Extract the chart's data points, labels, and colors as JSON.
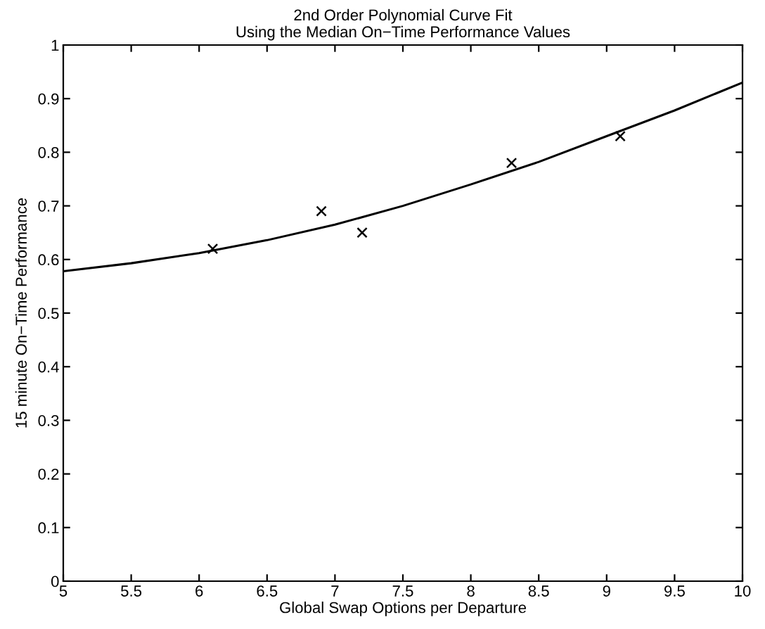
{
  "chart_data": {
    "type": "scatter",
    "title": "2nd Order Polynomial Curve Fit\nUsing the Median On−Time Performance Values",
    "xlabel": "Global Swap Options per Departure",
    "ylabel": "15 minute On−Time Performance",
    "series": [
      {
        "color": "#000000",
        "marker": "cross",
        "x": [
          6.1,
          6.9,
          7.2,
          8.3,
          9.1
        ],
        "values": [
          0.62,
          0.69,
          0.65,
          0.78,
          0.83
        ]
      },
      {
        "type": "line",
        "color": "#000000",
        "marker": "none",
        "line_style": "solid",
        "x": [
          5,
          5.5,
          6,
          6.5,
          7,
          7.5,
          8,
          8.5,
          9,
          9.5,
          10
        ],
        "values": [
          0.578,
          0.593,
          0.612,
          0.636,
          0.665,
          0.7,
          0.74,
          0.782,
          0.83,
          0.878,
          0.93
        ]
      }
    ],
    "xlim": [
      5,
      10
    ],
    "xticks": [
      5,
      5.5,
      6,
      6.5,
      7,
      7.5,
      8,
      8.5,
      9,
      9.5,
      10
    ],
    "ylim": [
      0,
      1
    ],
    "yticks": [
      0,
      0.1,
      0.2,
      0.3,
      0.4,
      0.5,
      0.6,
      0.7,
      0.8,
      0.9,
      1
    ],
    "grid": false,
    "legend": false
  }
}
